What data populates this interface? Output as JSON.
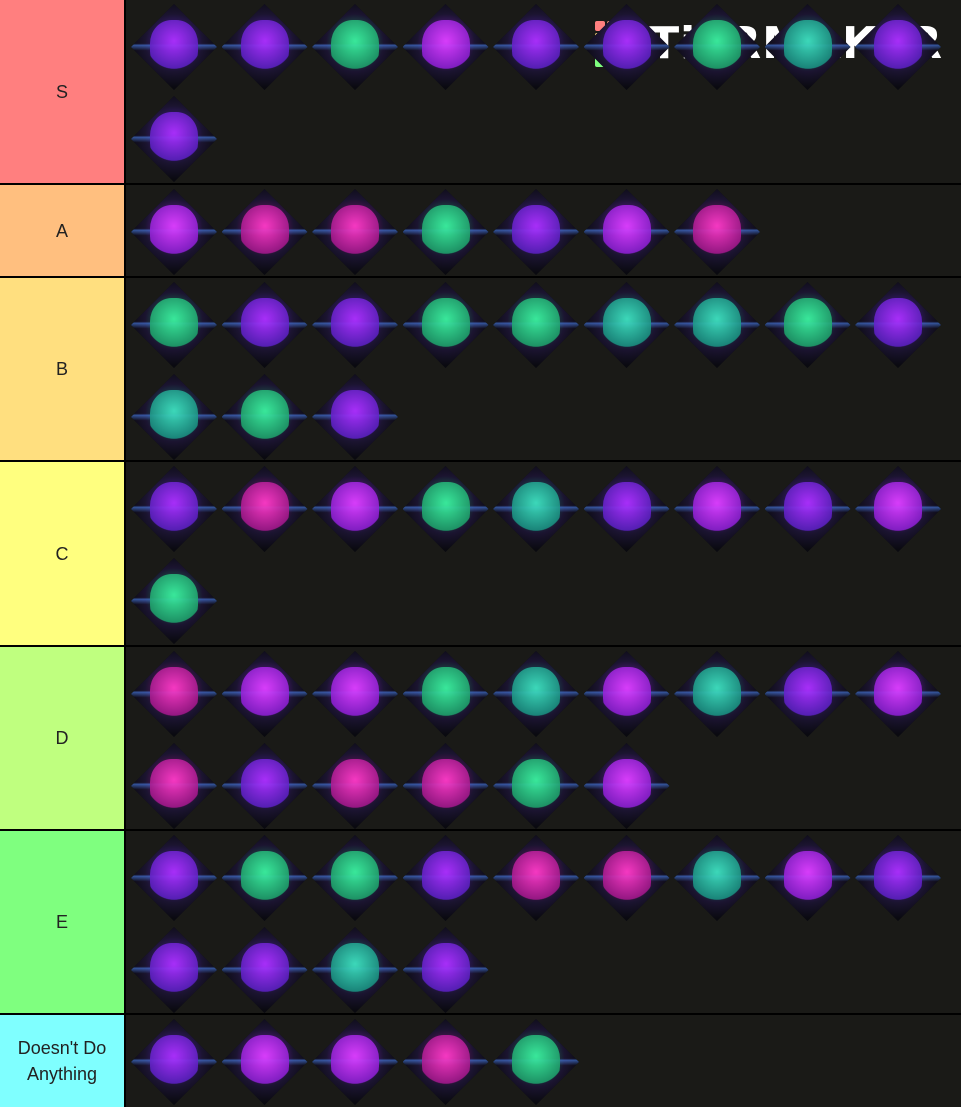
{
  "tiers": [
    {
      "label": "S"
    },
    {
      "label": "A"
    },
    {
      "label": "B"
    },
    {
      "label": "C"
    },
    {
      "label": "D"
    },
    {
      "label": "E"
    },
    {
      "label": "Doesn't Do Anything"
    }
  ],
  "logo": "TiERMAKER"
}
